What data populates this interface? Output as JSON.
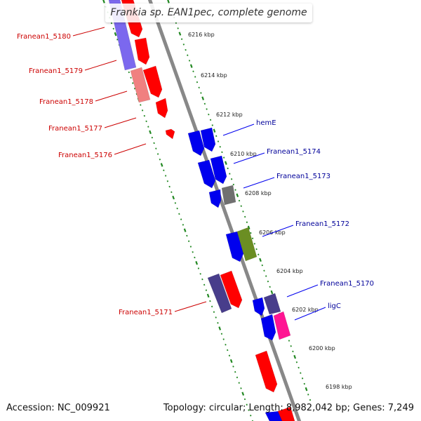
{
  "title": "Frankia sp. EAN1pec, complete genome",
  "footer": {
    "accession": "Accession: NC_009921",
    "info": "Topology: circular; Length: 8,982,042 bp; Genes: 7,249"
  },
  "colors": {
    "forward": "#ff0000",
    "reverse": "#0000ee",
    "forward_label": "#cc0000",
    "reverse_label": "#000099",
    "tick": "#228822",
    "backbone": "#888888",
    "purple": "#7b68ee",
    "pink_light": "#f08080",
    "dark_purple": "#483d8b",
    "gray": "#707070",
    "olive": "#6b8e23",
    "magenta": "#ff1493"
  },
  "ticks": [
    "6216 kbp",
    "6214 kbp",
    "6212 kbp",
    "6210 kbp",
    "6208 kbp",
    "6206 kbp",
    "6204 kbp",
    "6202 kbp",
    "6200 kbp",
    "6198 kbp"
  ],
  "forward_labels": [
    "Franean1_5180",
    "Franean1_5179",
    "Franean1_5178",
    "Franean1_5177",
    "Franean1_5176",
    "Franean1_5171"
  ],
  "reverse_labels": [
    "hemE",
    "Franean1_5174",
    "Franean1_5173",
    "Franean1_5172",
    "Franean1_5170",
    "ligC"
  ]
}
